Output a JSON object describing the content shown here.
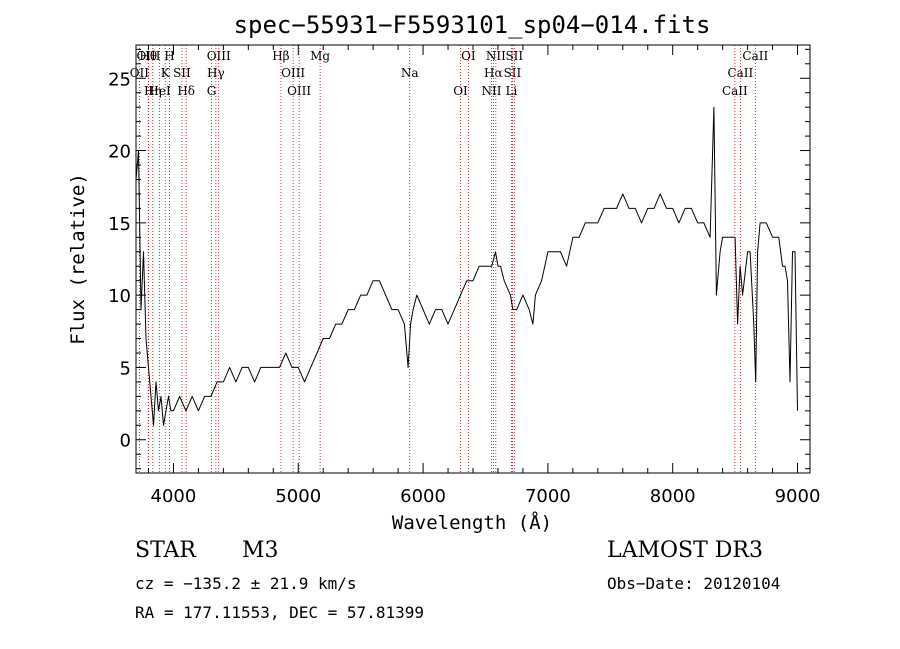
{
  "chart_data": {
    "type": "line",
    "title": "spec−55931−F5593101_sp04−014.fits",
    "xlabel": "Wavelength (Å)",
    "ylabel": "Flux (relative)",
    "xlim": [
      3700,
      9100
    ],
    "ylim": [
      -2.3,
      27.3
    ],
    "xticks": [
      4000,
      5000,
      6000,
      7000,
      8000,
      9000
    ],
    "yticks": [
      0,
      5,
      10,
      15,
      20,
      25
    ],
    "series": [
      {
        "name": "flux",
        "x": [
          3700,
          3720,
          3740,
          3760,
          3780,
          3800,
          3820,
          3840,
          3860,
          3880,
          3900,
          3920,
          3940,
          3960,
          3980,
          4000,
          4050,
          4100,
          4150,
          4200,
          4250,
          4300,
          4350,
          4400,
          4450,
          4500,
          4550,
          4600,
          4650,
          4700,
          4750,
          4800,
          4850,
          4900,
          4950,
          5000,
          5050,
          5100,
          5150,
          5200,
          5250,
          5300,
          5350,
          5400,
          5450,
          5500,
          5550,
          5600,
          5650,
          5700,
          5750,
          5800,
          5850,
          5880,
          5900,
          5920,
          5950,
          6000,
          6050,
          6100,
          6150,
          6200,
          6250,
          6300,
          6350,
          6400,
          6450,
          6500,
          6550,
          6580,
          6600,
          6620,
          6650,
          6700,
          6720,
          6750,
          6800,
          6850,
          6880,
          6900,
          6950,
          7000,
          7050,
          7100,
          7150,
          7200,
          7250,
          7300,
          7350,
          7400,
          7450,
          7500,
          7550,
          7600,
          7650,
          7700,
          7750,
          7800,
          7850,
          7900,
          7950,
          8000,
          8050,
          8100,
          8150,
          8200,
          8250,
          8300,
          8330,
          8350,
          8380,
          8400,
          8450,
          8500,
          8520,
          8540,
          8560,
          8600,
          8620,
          8650,
          8665,
          8680,
          8700,
          8750,
          8800,
          8850,
          8880,
          8900,
          8920,
          8940,
          8960,
          8980,
          9000
        ],
        "y": [
          18,
          20,
          9,
          13,
          7,
          5,
          3,
          1,
          4,
          2,
          3,
          1,
          2,
          3,
          2,
          2,
          3,
          2,
          3,
          2,
          3,
          3,
          4,
          4,
          5,
          4,
          5,
          5,
          4,
          5,
          5,
          5,
          5,
          6,
          5,
          5,
          4,
          5,
          6,
          7,
          7,
          8,
          8,
          9,
          9,
          10,
          10,
          11,
          11,
          10,
          9,
          9,
          8,
          5,
          8,
          9,
          10,
          9,
          8,
          9,
          9,
          8,
          9,
          10,
          11,
          11,
          12,
          12,
          12,
          13,
          12,
          12,
          11,
          10,
          9,
          9,
          10,
          9,
          8,
          10,
          11,
          13,
          13,
          13,
          12,
          14,
          14,
          15,
          15,
          15,
          16,
          16,
          16,
          17,
          16,
          16,
          15,
          16,
          16,
          17,
          16,
          16,
          15,
          16,
          16,
          15,
          15,
          14,
          23,
          10,
          13,
          14,
          14,
          14,
          8,
          12,
          10,
          13,
          13,
          8,
          4,
          13,
          15,
          15,
          14,
          14,
          12,
          12,
          11,
          4,
          13,
          13,
          2
        ]
      }
    ],
    "line_markers": [
      {
        "label": "Hθ",
        "wavelength": 3798
      },
      {
        "label": "OII",
        "wavelength": 3727
      },
      {
        "label": "Hη",
        "wavelength": 3835
      },
      {
        "label": "OIII",
        "wavelength": 3800
      },
      {
        "label": "K",
        "wavelength": 3934
      },
      {
        "label": "HeI",
        "wavelength": 3889
      },
      {
        "label": "H",
        "wavelength": 3968
      },
      {
        "label": "SII",
        "wavelength": 4068
      },
      {
        "label": "Hδ",
        "wavelength": 4102
      },
      {
        "label": "OIII",
        "wavelength": 4363
      },
      {
        "label": "Hγ",
        "wavelength": 4340
      },
      {
        "label": "G",
        "wavelength": 4305
      },
      {
        "label": "Hβ",
        "wavelength": 4861
      },
      {
        "label": "OIII",
        "wavelength": 4959
      },
      {
        "label": "OIII",
        "wavelength": 5007
      },
      {
        "label": "Mg",
        "wavelength": 5175
      },
      {
        "label": "Na",
        "wavelength": 5893
      },
      {
        "label": "OI",
        "wavelength": 6300
      },
      {
        "label": "OI",
        "wavelength": 6363
      },
      {
        "label": "Hα",
        "wavelength": 6563
      },
      {
        "label": "NII",
        "wavelength": 6548
      },
      {
        "label": "NII",
        "wavelength": 6583
      },
      {
        "label": "SII",
        "wavelength": 6716
      },
      {
        "label": "Li",
        "wavelength": 6708
      },
      {
        "label": "SII",
        "wavelength": 6731
      },
      {
        "label": "CaII",
        "wavelength": 8542
      },
      {
        "label": "CaII",
        "wavelength": 8498
      },
      {
        "label": "CaII",
        "wavelength": 8662
      }
    ]
  },
  "info": {
    "object_class": "STAR",
    "subclass": "M3",
    "survey": "LAMOST DR3",
    "redshift": "cz = −135.2 ± 21.9 km/s",
    "obs_date": "Obs−Date: 20120104",
    "coords": "RA = 177.11553, DEC =  57.81399"
  },
  "colors": {
    "line": "#000000",
    "marker": "#cc0000",
    "background": "#ffffff"
  }
}
